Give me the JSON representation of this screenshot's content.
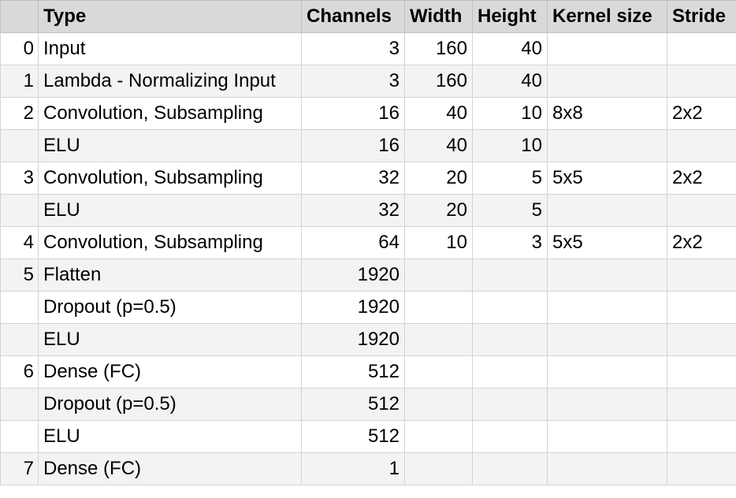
{
  "table": {
    "headers": [
      "",
      "Type",
      "Channels",
      "Width",
      "Height",
      "Kernel size",
      "Stride"
    ],
    "rows": [
      [
        "0",
        "Input",
        "3",
        "160",
        "40",
        "",
        ""
      ],
      [
        "1",
        "Lambda - Normalizing Input",
        "3",
        "160",
        "40",
        "",
        ""
      ],
      [
        "2",
        "Convolution, Subsampling",
        "16",
        "40",
        "10",
        "8x8",
        "2x2"
      ],
      [
        "",
        "ELU",
        "16",
        "40",
        "10",
        "",
        ""
      ],
      [
        "3",
        "Convolution, Subsampling",
        "32",
        "20",
        "5",
        "5x5",
        "2x2"
      ],
      [
        "",
        "ELU",
        "32",
        "20",
        "5",
        "",
        ""
      ],
      [
        "4",
        "Convolution, Subsampling",
        "64",
        "10",
        "3",
        "5x5",
        "2x2"
      ],
      [
        "5",
        "Flatten",
        "1920",
        "",
        "",
        "",
        ""
      ],
      [
        "",
        "Dropout (p=0.5)",
        "1920",
        "",
        "",
        "",
        ""
      ],
      [
        "",
        "ELU",
        "1920",
        "",
        "",
        "",
        ""
      ],
      [
        "6",
        "Dense (FC)",
        "512",
        "",
        "",
        "",
        ""
      ],
      [
        "",
        "Dropout (p=0.5)",
        "512",
        "",
        "",
        "",
        ""
      ],
      [
        "",
        "ELU",
        "512",
        "",
        "",
        "",
        ""
      ],
      [
        "7",
        "Dense (FC)",
        "1",
        "",
        "",
        "",
        ""
      ]
    ]
  }
}
